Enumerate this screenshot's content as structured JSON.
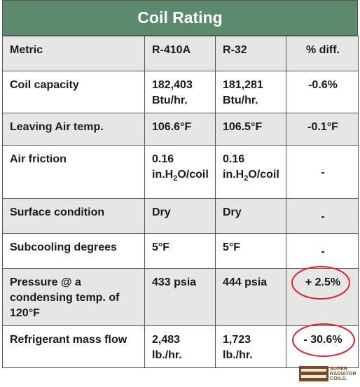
{
  "title": "Coil Rating",
  "headers": [
    "Metric",
    "R-410A",
    "R-32",
    "% diff."
  ],
  "rows": [
    {
      "metric": "Coil capacity",
      "r410a": "182,403 Btu/hr.",
      "r32": "181,281 Btu/hr.",
      "diff": "-0.6%"
    },
    {
      "metric": "Leaving Air temp.",
      "r410a": "106.6°F",
      "r32": "106.5°F",
      "diff": "-0.1°F"
    },
    {
      "metric": "Air friction",
      "r410a_value": "0.16",
      "r410a_unit_pre": "in.H",
      "r410a_sub": "2",
      "r410a_unit_post": "O/coil",
      "r32_value": "0.16",
      "r32_unit_pre": "in.H",
      "r32_sub": "2",
      "r32_unit_post": "O/coil",
      "diff": "-"
    },
    {
      "metric": "Surface condition",
      "r410a": "Dry",
      "r32": "Dry",
      "diff": "-"
    },
    {
      "metric": "Subcooling degrees",
      "r410a": "5°F",
      "r32": "5°F",
      "diff": "-"
    },
    {
      "metric": "Pressure @ a condensing temp. of 120°F",
      "r410a": "433 psia",
      "r32": "444 psia",
      "diff": "+ 2.5%"
    },
    {
      "metric": "Refrigerant mass flow",
      "r410a": "2,483 lb./hr.",
      "r32": "1,723 lb./hr.",
      "diff": "- 30.6%"
    }
  ],
  "logo": {
    "line1": "SUPER",
    "line2": "RADIATOR",
    "line3": "COILS."
  },
  "colors": {
    "header_green": "#5b8a6f",
    "shade": "#e6e6e6",
    "highlight_ring": "#e0202a"
  }
}
